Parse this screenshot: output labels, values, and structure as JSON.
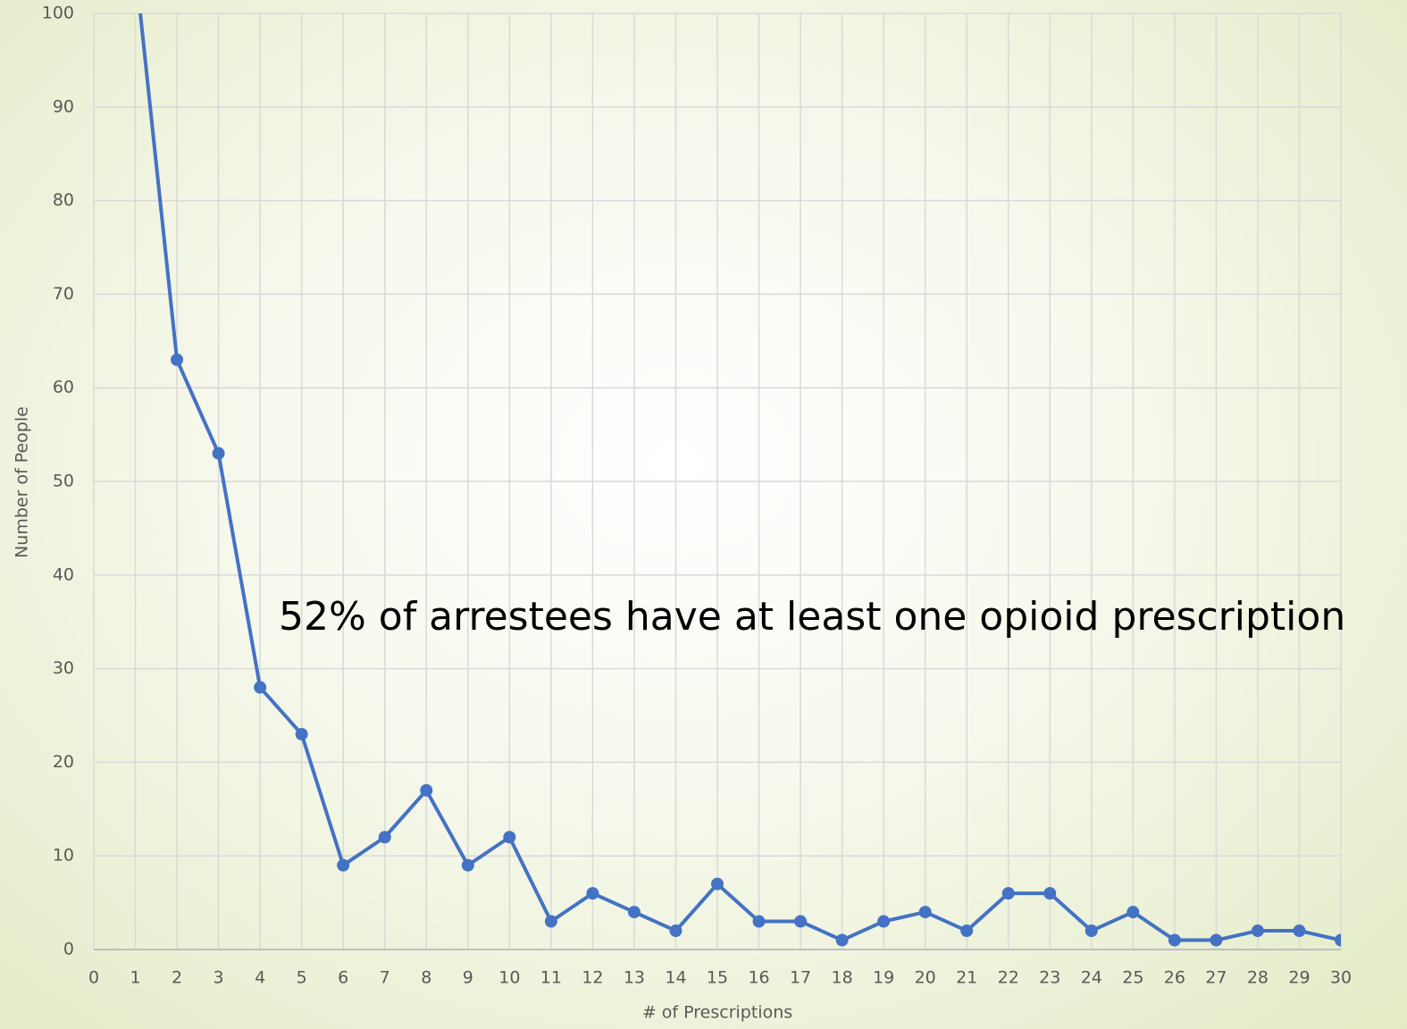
{
  "chart_data": {
    "type": "line",
    "annotation": "52% of arrestees have at least one opioid prescription",
    "x_label": "# of Prescriptions",
    "y_label": "Number of People",
    "x": [
      1,
      2,
      3,
      4,
      5,
      6,
      7,
      8,
      9,
      10,
      11,
      12,
      13,
      14,
      15,
      16,
      17,
      18,
      19,
      20,
      21,
      22,
      23,
      24,
      25,
      26,
      27,
      28,
      29,
      30
    ],
    "values": [
      105,
      63,
      53,
      28,
      23,
      9,
      12,
      17,
      9,
      12,
      3,
      6,
      4,
      2,
      7,
      3,
      3,
      1,
      3,
      4,
      2,
      6,
      6,
      2,
      4,
      1,
      1,
      2,
      2,
      1
    ],
    "color": "#4472c4",
    "xlim": [
      0,
      30
    ],
    "xticks": [
      0,
      1,
      2,
      3,
      4,
      5,
      6,
      7,
      8,
      9,
      10,
      11,
      12,
      13,
      14,
      15,
      16,
      17,
      18,
      19,
      20,
      21,
      22,
      23,
      24,
      25,
      26,
      27,
      28,
      29,
      30
    ],
    "ylim": [
      0,
      100
    ],
    "yticks": [
      0,
      10,
      20,
      30,
      40,
      50,
      60,
      70,
      80,
      90,
      100
    ],
    "grid": true
  }
}
